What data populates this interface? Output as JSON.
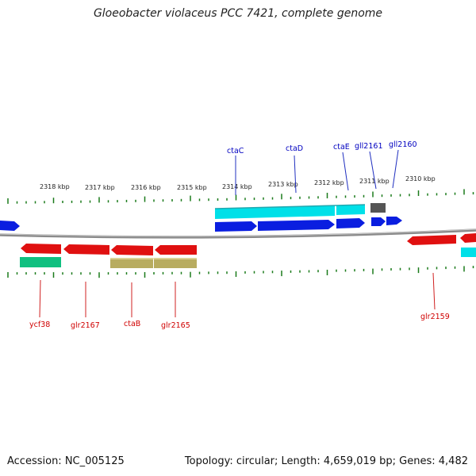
{
  "title": "Gloeobacter violaceus PCC 7421, complete genome",
  "footer": {
    "accession": "Accession: NC_005125",
    "summary": "Topology: circular; Length: 4,659,019 bp; Genes: 4,482"
  },
  "colors": {
    "forward_strand_blue": "#0a1ee0",
    "reverse_strand_red": "#e01010",
    "cyan_track": "#00e0e8",
    "green_track": "#10c080",
    "olive_track": "#b8ac60",
    "gray_gene": "#555555",
    "tick_green": "#1a7a1a",
    "backbone_gray": "#888888",
    "forward_label": "#0000c0",
    "reverse_label": "#d00000"
  },
  "scale_labels": [
    {
      "text": "2318 kbp"
    },
    {
      "text": "2317 kbp"
    },
    {
      "text": "2316 kbp"
    },
    {
      "text": "2315 kbp"
    },
    {
      "text": "2314 kbp"
    },
    {
      "text": "2313 kbp"
    },
    {
      "text": "2312 kbp"
    },
    {
      "text": "2311 kbp"
    },
    {
      "text": "2310 kbp"
    }
  ],
  "forward_gene_labels": [
    {
      "text": "ctaC"
    },
    {
      "text": "ctaD"
    },
    {
      "text": "ctaE"
    },
    {
      "text": "gll2161"
    },
    {
      "text": "gll2160"
    }
  ],
  "reverse_gene_labels": [
    {
      "text": "ycf38"
    },
    {
      "text": "glr2167"
    },
    {
      "text": "ctaB"
    },
    {
      "text": "glr2165"
    },
    {
      "text": "glr2159"
    }
  ]
}
